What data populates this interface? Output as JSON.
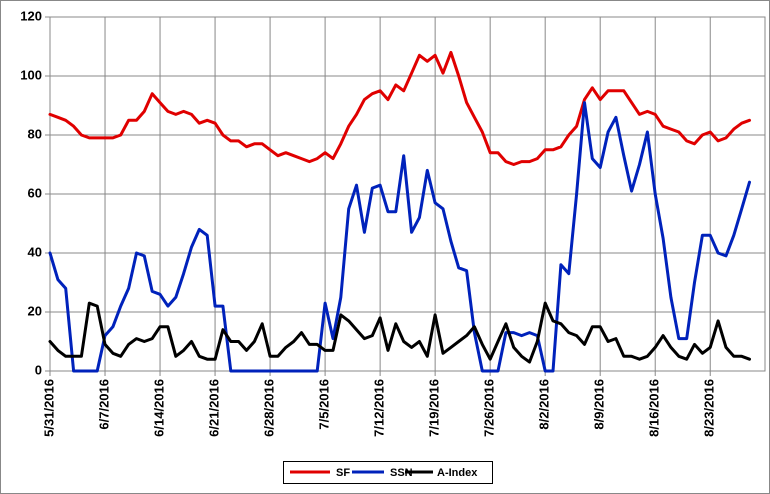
{
  "chart_data": {
    "type": "line",
    "categories": [
      "5/31/2016",
      null,
      null,
      null,
      null,
      null,
      null,
      "6/7/2016",
      null,
      null,
      null,
      null,
      null,
      null,
      "6/14/2016",
      null,
      null,
      null,
      null,
      null,
      null,
      "6/21/2016",
      null,
      null,
      null,
      null,
      null,
      null,
      "6/28/2016",
      null,
      null,
      null,
      null,
      null,
      null,
      "7/5/2016",
      null,
      null,
      null,
      null,
      null,
      null,
      "7/12/2016",
      null,
      null,
      null,
      null,
      null,
      null,
      "7/19/2016",
      null,
      null,
      null,
      null,
      null,
      null,
      "7/26/2016",
      null,
      null,
      null,
      null,
      null,
      null,
      "8/2/2016",
      null,
      null,
      null,
      null,
      null,
      null,
      "8/9/2016",
      null,
      null,
      null,
      null,
      null,
      null,
      "8/16/2016",
      null,
      null,
      null,
      null,
      null,
      null,
      "8/23/2016",
      null,
      null,
      null,
      null,
      null
    ],
    "series": [
      {
        "name": "SF",
        "color": "#e00000",
        "values": [
          87,
          86,
          85,
          83,
          80,
          79,
          79,
          79,
          79,
          80,
          85,
          85,
          88,
          94,
          91,
          88,
          87,
          88,
          87,
          84,
          85,
          84,
          80,
          78,
          78,
          76,
          77,
          77,
          75,
          73,
          74,
          73,
          72,
          71,
          72,
          74,
          72,
          77,
          83,
          87,
          92,
          94,
          95,
          92,
          97,
          95,
          101,
          107,
          105,
          107,
          101,
          108,
          100,
          91,
          86,
          81,
          74,
          74,
          71,
          70,
          71,
          71,
          72,
          75,
          75,
          76,
          80,
          83,
          92,
          96,
          92,
          95,
          95,
          95,
          91,
          87,
          88,
          87,
          83,
          82,
          81,
          78,
          77,
          80,
          81,
          78,
          79,
          82,
          84,
          85
        ]
      },
      {
        "name": "SSN",
        "color": "#0022bb",
        "values": [
          40,
          31,
          28,
          0,
          0,
          0,
          0,
          12,
          15,
          22,
          28,
          40,
          39,
          27,
          26,
          22,
          25,
          33,
          42,
          48,
          46,
          22,
          22,
          0,
          0,
          0,
          0,
          0,
          0,
          0,
          0,
          0,
          0,
          0,
          0,
          23,
          11,
          25,
          55,
          63,
          47,
          62,
          63,
          54,
          54,
          73,
          47,
          52,
          68,
          57,
          55,
          44,
          35,
          34,
          13,
          0,
          0,
          0,
          13,
          13,
          12,
          13,
          12,
          0,
          0,
          36,
          33,
          60,
          91,
          72,
          69,
          81,
          86,
          73,
          61,
          70,
          81,
          60,
          45,
          25,
          11,
          11,
          30,
          46,
          46,
          40,
          39,
          46,
          55,
          64
        ]
      },
      {
        "name": "A-Index",
        "color": "#000000",
        "values": [
          10,
          7,
          5,
          5,
          5,
          23,
          22,
          9,
          6,
          5,
          9,
          11,
          10,
          11,
          15,
          15,
          5,
          7,
          10,
          5,
          4,
          4,
          14,
          10,
          10,
          7,
          10,
          16,
          5,
          5,
          8,
          10,
          13,
          9,
          9,
          7,
          7,
          19,
          17,
          14,
          11,
          12,
          18,
          7,
          16,
          10,
          8,
          10,
          5,
          19,
          6,
          8,
          10,
          12,
          15,
          9,
          4,
          10,
          16,
          8,
          5,
          3,
          10,
          23,
          17,
          16,
          13,
          12,
          9,
          15,
          15,
          10,
          11,
          5,
          5,
          4,
          5,
          8,
          12,
          8,
          5,
          4,
          9,
          6,
          8,
          17,
          8,
          5,
          5,
          4
        ]
      }
    ],
    "ylim": [
      0,
      120
    ],
    "yticks": [
      0,
      20,
      40,
      60,
      80,
      100,
      120
    ],
    "grid": true,
    "legend": "bottom"
  }
}
